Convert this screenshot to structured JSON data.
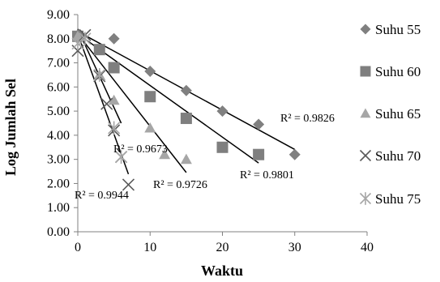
{
  "chart_data": {
    "type": "scatter",
    "title": "",
    "xlabel": "Waktu",
    "ylabel": "Log Jumlah Sel",
    "xlim": [
      0,
      40
    ],
    "ylim": [
      0,
      9
    ],
    "xticks": [
      "0",
      "10",
      "20",
      "30",
      "40"
    ],
    "yticks": [
      "0.00",
      "1.00",
      "2.00",
      "3.00",
      "4.00",
      "5.00",
      "6.00",
      "7.00",
      "8.00",
      "9.00"
    ],
    "grid": false,
    "legend_position": "right",
    "series": [
      {
        "name": "Suhu 55",
        "marker": "diamond",
        "color": "#808080",
        "x": [
          0,
          5,
          10,
          15,
          20,
          25,
          30
        ],
        "y": [
          8.15,
          8.0,
          6.65,
          5.85,
          5.0,
          4.45,
          3.2
        ],
        "trendline": {
          "slope": -0.163,
          "intercept": 8.3
        },
        "r2_label": "R² = 0.9826"
      },
      {
        "name": "Suhu 60",
        "marker": "square",
        "color": "#7f7f7f",
        "x": [
          0,
          3,
          5,
          10,
          15,
          20,
          25
        ],
        "y": [
          8.1,
          7.55,
          6.8,
          5.6,
          4.7,
          3.5,
          3.2
        ],
        "trendline": {
          "slope": -0.214,
          "intercept": 8.2
        },
        "r2_label": "R² = 0.9801"
      },
      {
        "name": "Suhu 65",
        "marker": "triangle",
        "color": "#a6a6a6",
        "x": [
          0,
          3,
          5,
          10,
          12,
          15
        ],
        "y": [
          8.1,
          6.5,
          5.45,
          4.3,
          3.2,
          3.0
        ],
        "trendline": {
          "slope": -0.383,
          "intercept": 8.2
        },
        "r2_label": "R² = 0.9673"
      },
      {
        "name": "Suhu 70",
        "marker": "x",
        "color": "#595959",
        "x": [
          0,
          1,
          3,
          4,
          5,
          6,
          7
        ],
        "y": [
          7.5,
          8.15,
          6.45,
          5.3,
          4.2,
          3.1,
          1.95
        ],
        "trendline": {
          "slope": -0.83,
          "intercept": 8.2
        },
        "r2_label": "R² = 0.9944"
      },
      {
        "name": "Suhu 75",
        "marker": "asterisk",
        "color": "#a6a6a6",
        "x": [
          0,
          1,
          3,
          5,
          6
        ],
        "y": [
          7.8,
          8.0,
          6.5,
          4.3,
          3.1
        ],
        "trendline": {
          "slope": -0.65,
          "intercept": 8.4
        },
        "r2_label": "R² = 0.9726"
      }
    ]
  }
}
